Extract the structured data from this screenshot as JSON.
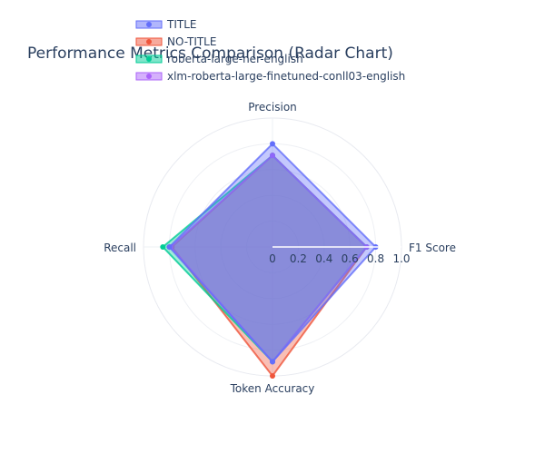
{
  "chart_data": {
    "type": "radar",
    "title": "Performance Metrics Comparison (Radar Chart)",
    "axes": [
      "F1 Score",
      "Precision",
      "Recall",
      "Token Accuracy"
    ],
    "radial_range": [
      0,
      1.0
    ],
    "radial_ticks": [
      "0",
      "0.2",
      "0.4",
      "0.6",
      "0.8",
      "1.0"
    ],
    "grid": true,
    "legend_position": "top-left",
    "series": [
      {
        "name": "TITLE",
        "color": "#636efa",
        "values": [
          0.8,
          0.8,
          0.8,
          0.89
        ]
      },
      {
        "name": "NO-TITLE",
        "color": "#ef553b",
        "values": [
          0.73,
          0.71,
          0.78,
          1.0
        ]
      },
      {
        "name": "roberta-large-ner-english",
        "color": "#00cc96",
        "values": [
          0.73,
          0.71,
          0.85,
          0.89
        ]
      },
      {
        "name": "xlm-roberta-large-finetuned-conll03-english",
        "color": "#ab63fa",
        "values": [
          0.73,
          0.71,
          0.79,
          0.89
        ]
      }
    ]
  }
}
